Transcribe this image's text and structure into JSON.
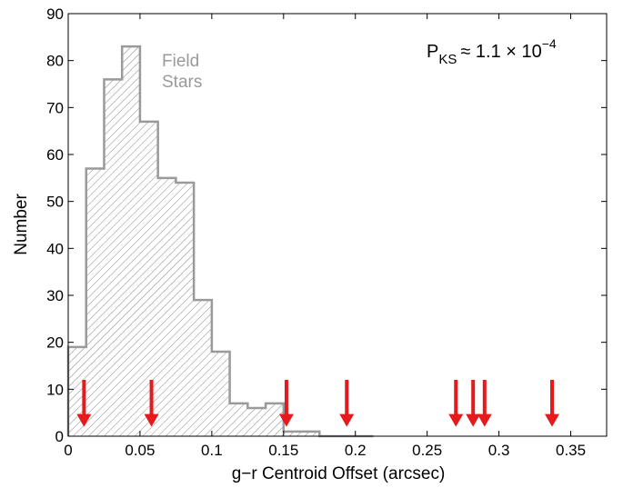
{
  "chart_data": {
    "type": "bar",
    "subtype": "histogram",
    "xlabel": "g−r Centroid Offset  (arcsec)",
    "ylabel": "Number",
    "xlim": [
      0,
      0.375
    ],
    "ylim": [
      0,
      90
    ],
    "xticks": [
      0,
      0.05,
      0.1,
      0.15,
      0.2,
      0.25,
      0.3,
      0.35
    ],
    "xtick_labels": [
      "0",
      "0.05",
      "0.1",
      "0.15",
      "0.2",
      "0.25",
      "0.3",
      "0.35"
    ],
    "yticks": [
      0,
      10,
      20,
      30,
      40,
      50,
      60,
      70,
      80,
      90
    ],
    "ytick_labels": [
      "0",
      "10",
      "20",
      "30",
      "40",
      "50",
      "60",
      "70",
      "80",
      "90"
    ],
    "bin_edges": [
      0,
      0.0125,
      0.025,
      0.0375,
      0.05,
      0.0625,
      0.075,
      0.0875,
      0.1,
      0.1125,
      0.125,
      0.1375,
      0.15,
      0.1625,
      0.175,
      0.1875,
      0.2,
      0.2125
    ],
    "counts": [
      19,
      57,
      76,
      83,
      67,
      55,
      54,
      29,
      18,
      7,
      6,
      7,
      1,
      1,
      0,
      0,
      0
    ],
    "series_label": [
      "Field",
      "Stars"
    ],
    "histogram_color": "#9a9a9a",
    "annotation": {
      "p_label": "P",
      "p_subscript": "KS",
      "relation": "≈ 1.1 × 10",
      "exponent": "−4"
    },
    "arrows": {
      "color": "#e41a1c",
      "x_values": [
        0.011,
        0.058,
        0.152,
        0.194,
        0.27,
        0.282,
        0.29,
        0.337
      ],
      "top_y": 12,
      "bottom_y": 2
    },
    "grid": false
  }
}
